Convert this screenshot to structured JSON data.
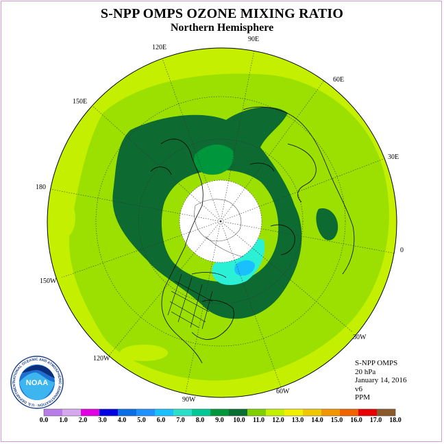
{
  "title": "S-NPP OMPS OZONE MIXING RATIO",
  "subtitle": "Northern Hemisphere",
  "longitude_labels": [
    {
      "id": "90e",
      "text": "90E"
    },
    {
      "id": "60e",
      "text": "60E"
    },
    {
      "id": "120e",
      "text": "120E"
    },
    {
      "id": "150e",
      "text": "150E"
    },
    {
      "id": "30e",
      "text": "30E"
    },
    {
      "id": "180",
      "text": "180"
    },
    {
      "id": "0",
      "text": "0"
    },
    {
      "id": "150w",
      "text": "150W"
    },
    {
      "id": "30w",
      "text": "30W"
    },
    {
      "id": "120w",
      "text": "120W"
    },
    {
      "id": "60w",
      "text": "60W"
    },
    {
      "id": "90w",
      "text": "90W"
    }
  ],
  "info": {
    "instrument": "S-NPP OMPS",
    "level": "20 hPa",
    "date": "January 14, 2016",
    "version": "v6",
    "units": "PPM"
  },
  "logo": {
    "text": "NOAA",
    "ring_text": "NATIONAL OCEANIC AND ATMOSPHERIC ADMINISTRATION · U.S. DEPARTMENT OF COMMERCE"
  },
  "colorbar": {
    "colors": [
      "#b87de8",
      "#d6a8f0",
      "#e000e0",
      "#0000e0",
      "#0a6ee6",
      "#1e90ff",
      "#19bfff",
      "#2be0c8",
      "#00c896",
      "#00963c",
      "#0a6e32",
      "#80d000",
      "#c4f000",
      "#f0f000",
      "#f0c800",
      "#f09600",
      "#f06400",
      "#e60000",
      "#8b5a2b"
    ],
    "ticks": [
      "0.0",
      "1.0",
      "2.0",
      "3.0",
      "4.0",
      "5.0",
      "6.0",
      "7.0",
      "8.0",
      "9.0",
      "10.0",
      "11.0",
      "12.0",
      "13.0",
      "14.0",
      "15.0",
      "16.0",
      "17.0",
      "18.0"
    ]
  }
}
